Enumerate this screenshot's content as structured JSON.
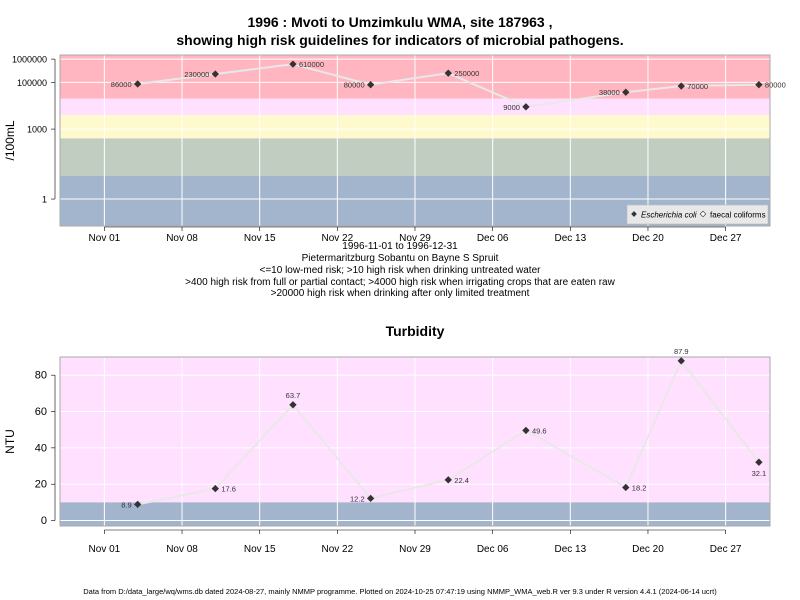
{
  "page_title_line1": "1996 : Mvoti to Umzimkulu WMA, site 187963 ,",
  "page_title_line2": "showing high risk guidelines for indicators of microbial pathogens.",
  "subtitles": [
    "1996-11-01 to 1996-12-31",
    "Pietermaritzburg Sobantu on Bayne S Spruit",
    "<=10 low-med risk; >10 high risk when drinking untreated water",
    ">400 high risk from full or partial contact; >4000 high risk when irrigating crops that are eaten raw",
    ">20000 high risk when drinking after only limited treatment"
  ],
  "footer": "Data from D:/data_large/wq/wms.db dated 2024-08-27, mainly NMMP programme. Plotted on 2024-10-25 07:47:19 using NMMP_WMA_web.R ver 9.3 under R version 4.4.1 (2024-06-14 ucrt)",
  "colors": {
    "red_band": "#ffb6c1",
    "pink_band": "#ffe0ff",
    "yellow_band": "#fffacd",
    "grey_green_band": "#c1cdc1",
    "blue_grey_band": "#a2b5cd",
    "line": "#e8e8e8",
    "point": "#333333"
  },
  "chart_data": [
    {
      "type": "line",
      "title": "",
      "ylabel": "/100mL",
      "y_scale": "log",
      "ylim": [
        0.07,
        1500000
      ],
      "x_range": [
        "1996-10-28",
        "1996-12-31"
      ],
      "x_ticks": [
        {
          "date": "1996-11-01",
          "label": "Nov 01"
        },
        {
          "date": "1996-11-08",
          "label": "Nov 08"
        },
        {
          "date": "1996-11-15",
          "label": "Nov 15"
        },
        {
          "date": "1996-11-22",
          "label": "Nov 22"
        },
        {
          "date": "1996-11-29",
          "label": "Nov 29"
        },
        {
          "date": "1996-12-06",
          "label": "Dec 06"
        },
        {
          "date": "1996-12-13",
          "label": "Dec 13"
        },
        {
          "date": "1996-12-20",
          "label": "Dec 20"
        },
        {
          "date": "1996-12-27",
          "label": "Dec 27"
        }
      ],
      "y_ticks": [
        {
          "value": 1,
          "label": "1"
        },
        {
          "value": 1000,
          "label": "1000"
        },
        {
          "value": 100000,
          "label": "100000"
        },
        {
          "value": 1000000,
          "label": "1000000"
        }
      ],
      "bands": [
        {
          "from": 20000,
          "to": 1500000,
          "color": "#ffb6c1"
        },
        {
          "from": 4000,
          "to": 20000,
          "color": "#ffe0ff"
        },
        {
          "from": 400,
          "to": 4000,
          "color": "#fffacd"
        },
        {
          "from": 10,
          "to": 400,
          "color": "#c1cdc1"
        },
        {
          "from": 0.07,
          "to": 10,
          "color": "#a2b5cd"
        }
      ],
      "legend": {
        "placement": "bottom-right",
        "entries": [
          "Escherichia coli",
          "faecal coliforms"
        ]
      },
      "series": [
        {
          "name": "faecal coliforms",
          "points": [
            {
              "x": "1996-11-04",
              "y": 86000,
              "label": "86000",
              "label_side": "left"
            },
            {
              "x": "1996-11-11",
              "y": 230000,
              "label": "230000",
              "label_side": "left"
            },
            {
              "x": "1996-11-18",
              "y": 610000,
              "label": "610000",
              "label_side": "right"
            },
            {
              "x": "1996-11-25",
              "y": 80000,
              "label": "80000",
              "label_side": "left"
            },
            {
              "x": "1996-12-02",
              "y": 250000,
              "label": "250000",
              "label_side": "right"
            },
            {
              "x": "1996-12-09",
              "y": 9000,
              "label": "9000",
              "label_side": "left"
            },
            {
              "x": "1996-12-18",
              "y": 38000,
              "label": "38000",
              "label_side": "left"
            },
            {
              "x": "1996-12-23",
              "y": 70000,
              "label": "70000",
              "label_side": "right"
            },
            {
              "x": "1996-12-30",
              "y": 80000,
              "label": "80000",
              "label_side": "right"
            }
          ]
        }
      ]
    },
    {
      "type": "line",
      "title": "Turbidity",
      "ylabel": "NTU",
      "ylim": [
        -3,
        90
      ],
      "x_range": [
        "1996-10-28",
        "1996-12-31"
      ],
      "x_ticks": [
        {
          "date": "1996-11-01",
          "label": "Nov 01"
        },
        {
          "date": "1996-11-08",
          "label": "Nov 08"
        },
        {
          "date": "1996-11-15",
          "label": "Nov 15"
        },
        {
          "date": "1996-11-22",
          "label": "Nov 22"
        },
        {
          "date": "1996-11-29",
          "label": "Nov 29"
        },
        {
          "date": "1996-12-06",
          "label": "Dec 06"
        },
        {
          "date": "1996-12-13",
          "label": "Dec 13"
        },
        {
          "date": "1996-12-20",
          "label": "Dec 20"
        },
        {
          "date": "1996-12-27",
          "label": "Dec 27"
        }
      ],
      "y_ticks": [
        {
          "value": 0,
          "label": "0"
        },
        {
          "value": 20,
          "label": "20"
        },
        {
          "value": 40,
          "label": "40"
        },
        {
          "value": 60,
          "label": "60"
        },
        {
          "value": 80,
          "label": "80"
        }
      ],
      "bands": [
        {
          "from": 10,
          "to": 90,
          "color": "#ffe0ff"
        },
        {
          "from": -3,
          "to": 10,
          "color": "#a2b5cd"
        }
      ],
      "series": [
        {
          "name": "",
          "points": [
            {
              "x": "1996-11-04",
              "y": 8.9,
              "label": "8.9",
              "label_side": "left"
            },
            {
              "x": "1996-11-11",
              "y": 17.6,
              "label": "17.6",
              "label_side": "right"
            },
            {
              "x": "1996-11-18",
              "y": 63.7,
              "label": "63.7",
              "label_side": "above"
            },
            {
              "x": "1996-11-25",
              "y": 12.2,
              "label": "12.2",
              "label_side": "left"
            },
            {
              "x": "1996-12-02",
              "y": 22.4,
              "label": "22.4",
              "label_side": "right"
            },
            {
              "x": "1996-12-09",
              "y": 49.6,
              "label": "49.6",
              "label_side": "right"
            },
            {
              "x": "1996-12-18",
              "y": 18.2,
              "label": "18.2",
              "label_side": "right"
            },
            {
              "x": "1996-12-23",
              "y": 87.9,
              "label": "87.9",
              "label_side": "above"
            },
            {
              "x": "1996-12-30",
              "y": 32.1,
              "label": "32.1",
              "label_side": "below"
            }
          ]
        }
      ]
    }
  ]
}
